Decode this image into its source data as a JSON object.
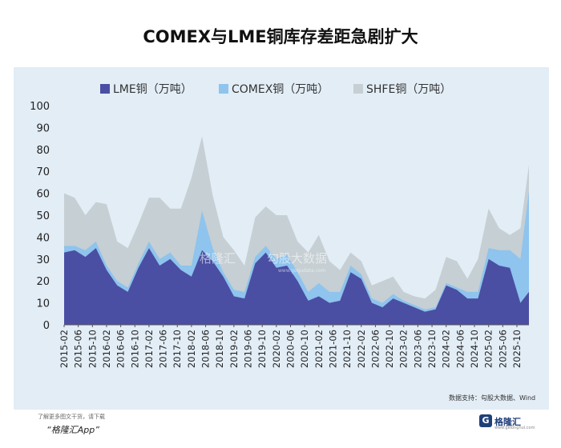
{
  "chart_data": {
    "type": "area",
    "stacked": true,
    "title": "COMEX与LME铜库存差距急剧扩大",
    "ylim": [
      0,
      100
    ],
    "yticks": [
      0,
      10,
      20,
      30,
      40,
      50,
      60,
      70,
      80,
      90,
      100
    ],
    "grid": false,
    "legend_position": "top",
    "x_start": 2015.0,
    "x_end": 2025.95,
    "xtick_labels": [
      "2015-02",
      "2015-06",
      "2015-10",
      "2016-02",
      "2016-06",
      "2016-10",
      "2017-02",
      "2017-06",
      "2017-10",
      "2018-02",
      "2018-06",
      "2018-10",
      "2019-02",
      "2019-06",
      "2019-10",
      "2020-02",
      "2020-06",
      "2020-10",
      "2021-02",
      "2021-06",
      "2021-10",
      "2022-02",
      "2022-06",
      "2022-10",
      "2023-02",
      "2023-06",
      "2023-10",
      "2024-02",
      "2024-06",
      "2024-10",
      "2025-02",
      "2025-06",
      "2025-10"
    ],
    "x": [
      2015.0,
      2015.25,
      2015.5,
      2015.75,
      2016.0,
      2016.25,
      2016.5,
      2016.75,
      2017.0,
      2017.25,
      2017.5,
      2017.75,
      2018.0,
      2018.25,
      2018.5,
      2018.75,
      2019.0,
      2019.25,
      2019.5,
      2019.75,
      2020.0,
      2020.25,
      2020.5,
      2020.75,
      2021.0,
      2021.25,
      2021.5,
      2021.75,
      2022.0,
      2022.25,
      2022.5,
      2022.75,
      2023.0,
      2023.25,
      2023.5,
      2023.75,
      2024.0,
      2024.25,
      2024.5,
      2024.75,
      2025.0,
      2025.25,
      2025.5,
      2025.75,
      2025.95
    ],
    "series": [
      {
        "name": "LME铜（万吨）",
        "color": "#4a4fa3",
        "values": [
          33,
          34,
          31,
          35,
          25,
          18,
          15,
          26,
          35,
          27,
          30,
          25,
          22,
          34,
          29,
          22,
          13,
          12,
          28,
          33,
          26,
          27,
          20,
          11,
          13,
          10,
          11,
          24,
          21,
          10,
          8,
          12,
          10,
          8,
          6,
          7,
          18,
          16,
          12,
          12,
          30,
          27,
          26,
          10,
          15
        ]
      },
      {
        "name": "COMEX铜（万吨）",
        "color": "#8ec4ee",
        "values": [
          3,
          2,
          3,
          3,
          2,
          2,
          2,
          2,
          3,
          3,
          3,
          2,
          5,
          18,
          6,
          2,
          3,
          3,
          3,
          3,
          4,
          5,
          4,
          4,
          6,
          5,
          4,
          3,
          2,
          2,
          2,
          2,
          1,
          1,
          1,
          1,
          1,
          1,
          3,
          3,
          5,
          7,
          8,
          20,
          46
        ]
      },
      {
        "name": "SHFE铜（万吨）",
        "color": "#c6cfd3",
        "values": [
          24,
          22,
          16,
          18,
          28,
          18,
          18,
          18,
          20,
          28,
          20,
          26,
          40,
          34,
          24,
          16,
          18,
          12,
          18,
          18,
          20,
          18,
          14,
          18,
          22,
          14,
          10,
          6,
          6,
          6,
          10,
          8,
          4,
          4,
          5,
          8,
          12,
          12,
          6,
          15,
          18,
          10,
          7,
          14,
          12
        ]
      }
    ]
  },
  "watermark": {
    "brand": "格隆汇",
    "brand2": "勾股大数据",
    "url": "www.gogudata.com"
  },
  "source": "数据支持：勾股大数据、Wind",
  "footer": {
    "note": "了解更多图文干货，请下载",
    "app": "“格隆汇App”",
    "logo_name": "格隆汇",
    "logo_url": "www.gelonghui.com",
    "logo_glyph": "G"
  }
}
